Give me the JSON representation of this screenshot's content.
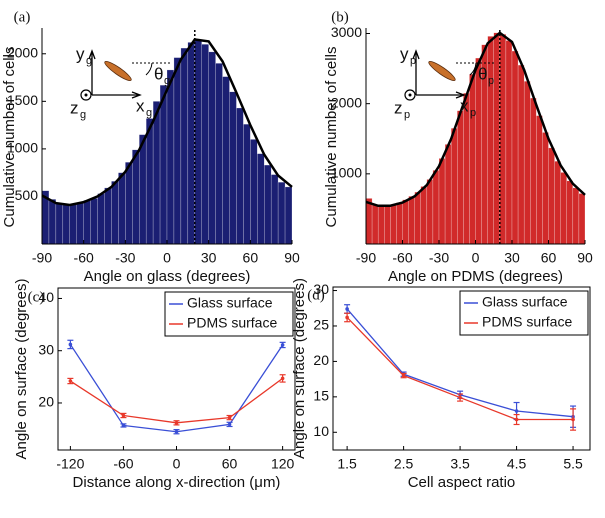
{
  "chart_data": [
    {
      "type": "histogram",
      "label": "(a)",
      "xlabel": "Angle on glass (degrees)",
      "ylabel": "Cumulative number of cells",
      "bins": [
        -90,
        -85,
        -80,
        -75,
        -70,
        -65,
        -60,
        -55,
        -50,
        -45,
        -40,
        -35,
        -30,
        -25,
        -20,
        -15,
        -10,
        -5,
        0,
        5,
        10,
        15,
        20,
        25,
        30,
        35,
        40,
        45,
        50,
        55,
        60,
        65,
        70,
        75,
        80,
        85,
        90
      ],
      "counts": [
        560,
        470,
        430,
        420,
        420,
        430,
        460,
        480,
        530,
        590,
        660,
        750,
        860,
        990,
        1150,
        1320,
        1500,
        1670,
        1830,
        1960,
        2060,
        2120,
        2140,
        2100,
        2020,
        1900,
        1760,
        1600,
        1430,
        1260,
        1100,
        950,
        830,
        730,
        650,
        600
      ],
      "color": "#1b1f73",
      "fit": {
        "color": "#000000",
        "x": [
          -90,
          -80,
          -70,
          -60,
          -50,
          -40,
          -30,
          -20,
          -10,
          0,
          10,
          20,
          30,
          40,
          50,
          60,
          70,
          80,
          90
        ],
        "values": [
          510,
          430,
          410,
          440,
          500,
          600,
          760,
          990,
          1290,
          1620,
          1940,
          2150,
          2130,
          1920,
          1590,
          1250,
          940,
          720,
          600
        ]
      },
      "vline_x": 20,
      "inset_labels": [
        {
          "text": "y",
          "sub": "g"
        },
        {
          "text": "θ",
          "sub": "g"
        },
        {
          "text": "z",
          "sub": "g"
        },
        {
          "text": "x",
          "sub": "g"
        }
      ],
      "xlim": [
        -90,
        90
      ],
      "xticks": [
        -90,
        -60,
        -30,
        0,
        30,
        60,
        90
      ],
      "ylim": [
        0,
        2250
      ],
      "yticks": [
        500,
        1000,
        1500,
        2000
      ]
    },
    {
      "type": "histogram",
      "label": "(b)",
      "xlabel": "Angle on PDMS (degrees)",
      "ylabel": "Cumulative number of cells",
      "bins": [
        -90,
        -85,
        -80,
        -75,
        -70,
        -65,
        -60,
        -55,
        -50,
        -45,
        -40,
        -35,
        -30,
        -25,
        -20,
        -15,
        -10,
        -5,
        0,
        5,
        10,
        15,
        20,
        25,
        30,
        35,
        40,
        45,
        50,
        55,
        60,
        65,
        70,
        75,
        80,
        85,
        90
      ],
      "counts": [
        650,
        560,
        540,
        540,
        560,
        590,
        630,
        680,
        740,
        820,
        920,
        1050,
        1220,
        1420,
        1650,
        1900,
        2150,
        2420,
        2650,
        2840,
        2960,
        3010,
        2990,
        2900,
        2750,
        2550,
        2320,
        2080,
        1830,
        1590,
        1370,
        1180,
        1020,
        900,
        800,
        720
      ],
      "color": "#d12a2a",
      "fit": {
        "color": "#000000",
        "x": [
          -90,
          -80,
          -70,
          -60,
          -50,
          -40,
          -30,
          -20,
          -10,
          0,
          10,
          20,
          30,
          40,
          50,
          60,
          70,
          80,
          90
        ],
        "values": [
          600,
          545,
          545,
          590,
          680,
          840,
          1110,
          1500,
          1990,
          2480,
          2860,
          3010,
          2880,
          2480,
          1980,
          1500,
          1120,
          860,
          700
        ]
      },
      "vline_x": 20,
      "inset_labels": [
        {
          "text": "y",
          "sub": "p"
        },
        {
          "text": "θ",
          "sub": "p"
        },
        {
          "text": "z",
          "sub": "p"
        },
        {
          "text": "x",
          "sub": "p"
        }
      ],
      "xlim": [
        -90,
        90
      ],
      "xticks": [
        -90,
        -60,
        -30,
        0,
        30,
        60,
        90
      ],
      "ylim": [
        0,
        3050
      ],
      "yticks": [
        1000,
        2000,
        3000
      ]
    },
    {
      "type": "line",
      "label": "(c)",
      "xlabel": "Distance along x-direction (μm)",
      "ylabel": "Angle on surface (degrees)",
      "x": [
        -120,
        -60,
        0,
        60,
        120
      ],
      "series": [
        {
          "name": "Glass surface",
          "color": "#3a4fd6",
          "values": [
            31.2,
            15.7,
            14.5,
            15.9,
            31.1
          ],
          "errors": [
            0.8,
            0.3,
            0.4,
            0.4,
            0.5
          ]
        },
        {
          "name": "PDMS surface",
          "color": "#e8382a",
          "values": [
            24.2,
            17.6,
            16.2,
            17.2,
            24.7
          ],
          "errors": [
            0.5,
            0.4,
            0.4,
            0.4,
            0.7
          ]
        }
      ],
      "xlim": [
        -134,
        134
      ],
      "xticks": [
        -120,
        -60,
        0,
        60,
        120
      ],
      "ylim": [
        11,
        42
      ],
      "yticks": [
        20,
        30,
        40
      ]
    },
    {
      "type": "line",
      "label": "(d)",
      "xlabel": "Cell aspect ratio",
      "ylabel": "Angle on surface (degrees)",
      "x": [
        1.5,
        2.5,
        3.5,
        4.5,
        5.5
      ],
      "series": [
        {
          "name": "Glass surface",
          "color": "#3a4fd6",
          "values": [
            27.4,
            18.2,
            15.3,
            13.0,
            12.2
          ],
          "errors": [
            0.6,
            0.3,
            0.5,
            1.2,
            1.5
          ]
        },
        {
          "name": "PDMS surface",
          "color": "#e8382a",
          "values": [
            26.2,
            18.0,
            14.9,
            11.8,
            11.8
          ],
          "errors": [
            0.6,
            0.3,
            0.5,
            0.7,
            1.5
          ]
        }
      ],
      "xlim": [
        1.25,
        5.8
      ],
      "xticks": [
        1.5,
        2.5,
        3.5,
        4.5,
        5.5
      ],
      "ylim": [
        7.5,
        30.5
      ],
      "yticks": [
        10,
        15,
        20,
        25,
        30
      ]
    }
  ]
}
